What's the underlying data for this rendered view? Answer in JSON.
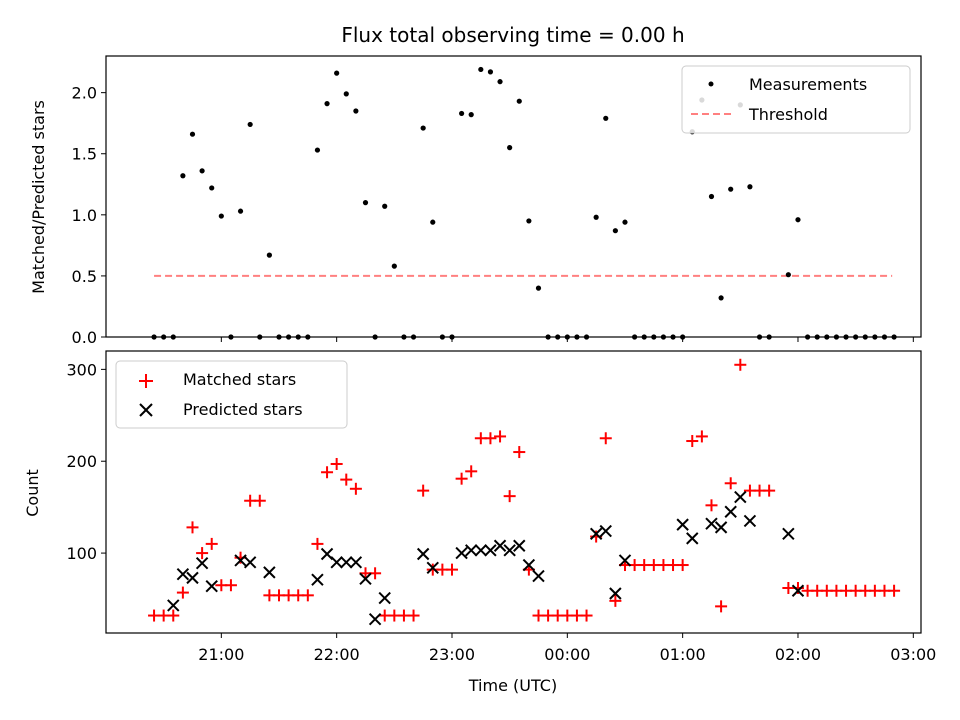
{
  "chart_data": [
    {
      "type": "scatter",
      "title": "Flux total observing time = 0.00 h",
      "xlabel": "",
      "ylabel": "Matched/Predicted stars",
      "ylim": [
        0,
        2.3
      ],
      "yticks": [
        "0.0",
        "0.5",
        "1.0",
        "1.5",
        "2.0"
      ],
      "legend": {
        "position": "top-right",
        "entries": [
          "Measurements",
          "Threshold"
        ]
      },
      "threshold": {
        "name": "Threshold",
        "value": 0.5,
        "x_start": "20:25",
        "x_end": "02:49",
        "color": "#ff8080"
      },
      "series": [
        {
          "name": "Measurements",
          "color": "#000000",
          "points": [
            [
              "20:25",
              0.0
            ],
            [
              "20:30",
              0.0
            ],
            [
              "20:35",
              0.0
            ],
            [
              "20:40",
              1.32
            ],
            [
              "20:45",
              1.66
            ],
            [
              "20:50",
              1.36
            ],
            [
              "20:55",
              1.22
            ],
            [
              "21:00",
              0.99
            ],
            [
              "21:05",
              0.0
            ],
            [
              "21:10",
              1.03
            ],
            [
              "21:15",
              1.74
            ],
            [
              "21:20",
              0.0
            ],
            [
              "21:25",
              0.67
            ],
            [
              "21:30",
              0.0
            ],
            [
              "21:35",
              0.0
            ],
            [
              "21:40",
              0.0
            ],
            [
              "21:45",
              0.0
            ],
            [
              "21:50",
              1.53
            ],
            [
              "21:55",
              1.91
            ],
            [
              "22:00",
              2.16
            ],
            [
              "22:05",
              1.99
            ],
            [
              "22:10",
              1.85
            ],
            [
              "22:15",
              1.1
            ],
            [
              "22:20",
              0.0
            ],
            [
              "22:25",
              1.07
            ],
            [
              "22:30",
              0.58
            ],
            [
              "22:35",
              0.0
            ],
            [
              "22:40",
              0.0
            ],
            [
              "22:45",
              1.71
            ],
            [
              "22:50",
              0.94
            ],
            [
              "22:55",
              0.0
            ],
            [
              "23:00",
              0.0
            ],
            [
              "23:05",
              1.83
            ],
            [
              "23:10",
              1.82
            ],
            [
              "23:15",
              2.19
            ],
            [
              "23:20",
              2.17
            ],
            [
              "23:25",
              2.09
            ],
            [
              "23:30",
              1.55
            ],
            [
              "23:35",
              1.93
            ],
            [
              "23:40",
              0.95
            ],
            [
              "23:45",
              0.4
            ],
            [
              "23:50",
              0.0
            ],
            [
              "23:55",
              0.0
            ],
            [
              "00:00",
              0.0
            ],
            [
              "00:05",
              0.0
            ],
            [
              "00:10",
              0.0
            ],
            [
              "00:15",
              0.98
            ],
            [
              "00:20",
              1.79
            ],
            [
              "00:25",
              0.87
            ],
            [
              "00:30",
              0.94
            ],
            [
              "00:35",
              0.0
            ],
            [
              "00:40",
              0.0
            ],
            [
              "00:45",
              0.0
            ],
            [
              "00:50",
              0.0
            ],
            [
              "00:55",
              0.0
            ],
            [
              "01:00",
              0.0
            ],
            [
              "01:05",
              1.68
            ],
            [
              "01:10",
              1.94
            ],
            [
              "01:15",
              1.15
            ],
            [
              "01:20",
              0.32
            ],
            [
              "01:25",
              1.21
            ],
            [
              "01:30",
              1.9
            ],
            [
              "01:35",
              1.23
            ],
            [
              "01:40",
              0.0
            ],
            [
              "01:45",
              0.0
            ],
            [
              "01:55",
              0.51
            ],
            [
              "02:00",
              0.96
            ],
            [
              "02:05",
              0.0
            ],
            [
              "02:10",
              0.0
            ],
            [
              "02:15",
              0.0
            ],
            [
              "02:20",
              0.0
            ],
            [
              "02:25",
              0.0
            ],
            [
              "02:30",
              0.0
            ],
            [
              "02:35",
              0.0
            ],
            [
              "02:40",
              0.0
            ],
            [
              "02:45",
              0.0
            ],
            [
              "02:50",
              0.0
            ]
          ]
        }
      ]
    },
    {
      "type": "scatter",
      "title": "",
      "xlabel": "Time (UTC)",
      "ylabel": "Count",
      "ylim": [
        13,
        320
      ],
      "yticks": [
        "100",
        "200",
        "300"
      ],
      "xlim": [
        "20:00",
        "03:04"
      ],
      "xticks": [
        "21:00",
        "22:00",
        "23:00",
        "00:00",
        "01:00",
        "02:00",
        "03:00"
      ],
      "legend": {
        "position": "top-left",
        "entries": [
          "Matched stars",
          "Predicted stars"
        ]
      },
      "series": [
        {
          "name": "Matched stars",
          "color": "#ff0000",
          "marker": "+",
          "points": [
            [
              "20:25",
              32
            ],
            [
              "20:30",
              32
            ],
            [
              "20:35",
              32
            ],
            [
              "20:40",
              57
            ],
            [
              "20:45",
              128
            ],
            [
              "20:50",
              100
            ],
            [
              "20:55",
              110
            ],
            [
              "21:00",
              65
            ],
            [
              "21:05",
              65
            ],
            [
              "21:10",
              95
            ],
            [
              "21:15",
              157
            ],
            [
              "21:20",
              157
            ],
            [
              "21:25",
              54
            ],
            [
              "21:30",
              54
            ],
            [
              "21:35",
              54
            ],
            [
              "21:40",
              54
            ],
            [
              "21:45",
              54
            ],
            [
              "21:50",
              110
            ],
            [
              "21:55",
              188
            ],
            [
              "22:00",
              197
            ],
            [
              "22:05",
              180
            ],
            [
              "22:10",
              170
            ],
            [
              "22:15",
              78
            ],
            [
              "22:20",
              78
            ],
            [
              "22:25",
              32
            ],
            [
              "22:30",
              32
            ],
            [
              "22:35",
              32
            ],
            [
              "22:40",
              32
            ],
            [
              "22:45",
              168
            ],
            [
              "22:50",
              82
            ],
            [
              "22:55",
              82
            ],
            [
              "23:00",
              82
            ],
            [
              "23:05",
              181
            ],
            [
              "23:10",
              189
            ],
            [
              "23:15",
              225
            ],
            [
              "23:20",
              225
            ],
            [
              "23:25",
              227
            ],
            [
              "23:30",
              162
            ],
            [
              "23:35",
              210
            ],
            [
              "23:40",
              82
            ],
            [
              "23:45",
              32
            ],
            [
              "23:50",
              32
            ],
            [
              "23:55",
              32
            ],
            [
              "00:00",
              32
            ],
            [
              "00:05",
              32
            ],
            [
              "00:10",
              32
            ],
            [
              "00:15",
              118
            ],
            [
              "00:20",
              225
            ],
            [
              "00:25",
              48
            ],
            [
              "00:30",
              87
            ],
            [
              "00:35",
              87
            ],
            [
              "00:40",
              87
            ],
            [
              "00:45",
              87
            ],
            [
              "00:50",
              87
            ],
            [
              "00:55",
              87
            ],
            [
              "01:00",
              87
            ],
            [
              "01:05",
              222
            ],
            [
              "01:10",
              227
            ],
            [
              "01:15",
              152
            ],
            [
              "01:20",
              42
            ],
            [
              "01:25",
              176
            ],
            [
              "01:30",
              305
            ],
            [
              "01:35",
              168
            ],
            [
              "01:40",
              168
            ],
            [
              "01:45",
              168
            ],
            [
              "01:55",
              62
            ],
            [
              "02:00",
              62
            ],
            [
              "02:05",
              59
            ],
            [
              "02:10",
              59
            ],
            [
              "02:15",
              59
            ],
            [
              "02:20",
              59
            ],
            [
              "02:25",
              59
            ],
            [
              "02:30",
              59
            ],
            [
              "02:35",
              59
            ],
            [
              "02:40",
              59
            ],
            [
              "02:45",
              59
            ],
            [
              "02:50",
              59
            ]
          ]
        },
        {
          "name": "Predicted stars",
          "color": "#000000",
          "marker": "x",
          "points": [
            [
              "20:35",
              43
            ],
            [
              "20:40",
              77
            ],
            [
              "20:45",
              73
            ],
            [
              "20:50",
              89
            ],
            [
              "20:55",
              64
            ],
            [
              "21:10",
              92
            ],
            [
              "21:15",
              90
            ],
            [
              "21:25",
              79
            ],
            [
              "21:50",
              71
            ],
            [
              "21:55",
              99
            ],
            [
              "22:00",
              90
            ],
            [
              "22:05",
              90
            ],
            [
              "22:10",
              90
            ],
            [
              "22:15",
              72
            ],
            [
              "22:20",
              28
            ],
            [
              "22:25",
              51
            ],
            [
              "22:45",
              99
            ],
            [
              "22:50",
              84
            ],
            [
              "23:05",
              100
            ],
            [
              "23:10",
              103
            ],
            [
              "23:15",
              103
            ],
            [
              "23:20",
              103
            ],
            [
              "23:25",
              108
            ],
            [
              "23:30",
              103
            ],
            [
              "23:35",
              108
            ],
            [
              "23:40",
              87
            ],
            [
              "23:45",
              75
            ],
            [
              "00:15",
              121
            ],
            [
              "00:20",
              124
            ],
            [
              "00:25",
              56
            ],
            [
              "00:30",
              92
            ],
            [
              "01:00",
              131
            ],
            [
              "01:05",
              116
            ],
            [
              "01:15",
              132
            ],
            [
              "01:20",
              128
            ],
            [
              "01:25",
              145
            ],
            [
              "01:30",
              161
            ],
            [
              "01:35",
              135
            ],
            [
              "01:55",
              121
            ],
            [
              "02:00",
              59
            ]
          ]
        }
      ]
    }
  ]
}
